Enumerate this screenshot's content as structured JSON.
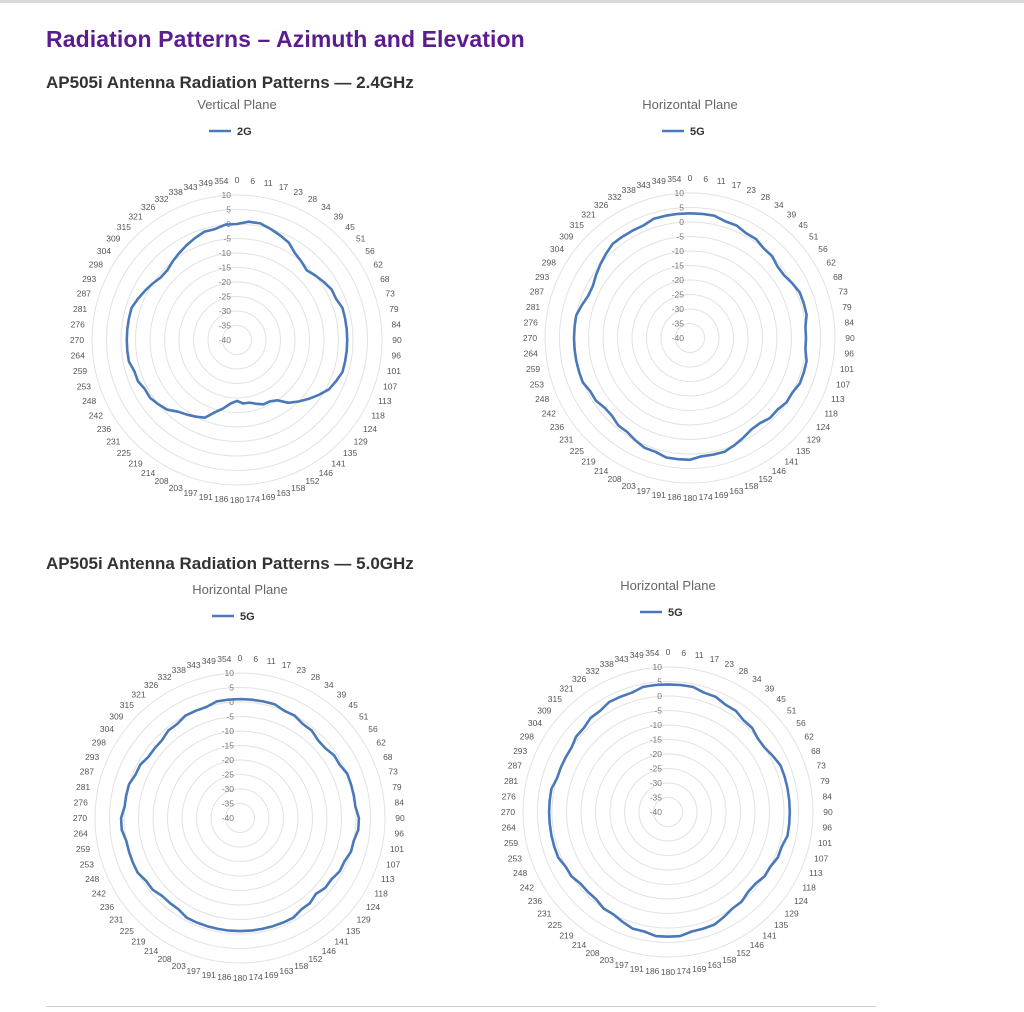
{
  "page": {
    "title": "Radiation Patterns – Azimuth and Elevation",
    "sections": [
      {
        "heading": "AP505i Antenna Radiation Patterns — 2.4GHz"
      },
      {
        "heading": "AP505i Antenna Radiation Patterns — 5.0GHz"
      }
    ]
  },
  "chart_data": [
    {
      "type": "radar",
      "title": "Vertical Plane",
      "legend": {
        "placement": "top",
        "entries": [
          "2G"
        ]
      },
      "angles": [
        "0",
        "6",
        "11",
        "17",
        "23",
        "28",
        "34",
        "39",
        "45",
        "51",
        "56",
        "62",
        "68",
        "73",
        "79",
        "84",
        "90",
        "96",
        "101",
        "107",
        "113",
        "118",
        "124",
        "129",
        "135",
        "141",
        "146",
        "152",
        "158",
        "163",
        "169",
        "174",
        "180",
        "186",
        "191",
        "197",
        "203",
        "208",
        "214",
        "219",
        "225",
        "231",
        "236",
        "242",
        "248",
        "253",
        "259",
        "264",
        "270",
        "276",
        "281",
        "287",
        "293",
        "298",
        "304",
        "309",
        "315",
        "321",
        "326",
        "332",
        "338",
        "343",
        "349",
        "354"
      ],
      "radial_ticks": [
        "10",
        "5",
        "0",
        "-5",
        "-10",
        "-15",
        "-20",
        "-25",
        "-30",
        "-35",
        "-40"
      ],
      "rlim": [
        -40,
        10
      ],
      "grid": true,
      "line_color": "#4a78b8",
      "series": [
        {
          "name": "2G",
          "values": [
            0,
            1,
            1,
            0,
            -1,
            -2,
            -4,
            -5,
            -6,
            -5,
            -4,
            -3,
            -3,
            -2,
            -2,
            -2,
            -2,
            -2,
            -2,
            -2,
            -3,
            -4,
            -6,
            -8,
            -10,
            -12,
            -15,
            -16,
            -16,
            -17,
            -18,
            -18,
            -19,
            -18,
            -16,
            -14,
            -11,
            -10,
            -9,
            -8,
            -6,
            -5,
            -4,
            -4,
            -3,
            -3,
            -2,
            -2,
            -2,
            -2,
            -2,
            -2,
            -3,
            -4,
            -5,
            -6,
            -6,
            -5,
            -4,
            -3,
            -2,
            -1,
            -1,
            0
          ]
        }
      ]
    },
    {
      "type": "radar",
      "title": "Horizontal Plane",
      "legend": {
        "placement": "top",
        "entries": [
          "5G"
        ]
      },
      "angles": [
        "0",
        "6",
        "11",
        "17",
        "23",
        "28",
        "34",
        "39",
        "45",
        "51",
        "56",
        "62",
        "68",
        "73",
        "79",
        "84",
        "90",
        "96",
        "101",
        "107",
        "113",
        "118",
        "124",
        "129",
        "135",
        "141",
        "146",
        "152",
        "158",
        "163",
        "169",
        "174",
        "180",
        "186",
        "191",
        "197",
        "203",
        "208",
        "214",
        "219",
        "225",
        "231",
        "236",
        "242",
        "248",
        "253",
        "259",
        "264",
        "270",
        "276",
        "281",
        "287",
        "293",
        "298",
        "304",
        "309",
        "315",
        "321",
        "326",
        "332",
        "338",
        "343",
        "349",
        "354"
      ],
      "radial_ticks": [
        "10",
        "5",
        "0",
        "-5",
        "-10",
        "-15",
        "-20",
        "-25",
        "-30",
        "-35",
        "-40"
      ],
      "rlim": [
        -40,
        10
      ],
      "grid": true,
      "line_color": "#4a78b8",
      "series": [
        {
          "name": "5G",
          "values": [
            3,
            3,
            3,
            2,
            2,
            1,
            1,
            0,
            0,
            -1,
            -1,
            0,
            1,
            1,
            1,
            0,
            0,
            0,
            1,
            1,
            1,
            0,
            0,
            -1,
            -1,
            -2,
            -2,
            -1,
            0,
            1,
            1,
            1,
            2,
            2,
            2,
            1,
            1,
            0,
            -1,
            -1,
            -2,
            -2,
            -1,
            -1,
            0,
            0,
            0,
            0,
            0,
            0,
            0,
            -1,
            -2,
            -2,
            -1,
            0,
            1,
            2,
            2,
            2,
            2,
            3,
            3,
            3
          ]
        }
      ]
    },
    {
      "type": "radar",
      "title": "Horizontal Plane",
      "legend": {
        "placement": "top",
        "entries": [
          "5G"
        ]
      },
      "angles": [
        "0",
        "6",
        "11",
        "17",
        "23",
        "28",
        "34",
        "39",
        "45",
        "51",
        "56",
        "62",
        "68",
        "73",
        "79",
        "84",
        "90",
        "96",
        "101",
        "107",
        "113",
        "118",
        "124",
        "129",
        "135",
        "141",
        "146",
        "152",
        "158",
        "163",
        "169",
        "174",
        "180",
        "186",
        "191",
        "197",
        "203",
        "208",
        "214",
        "219",
        "225",
        "231",
        "236",
        "242",
        "248",
        "253",
        "259",
        "264",
        "270",
        "276",
        "281",
        "287",
        "293",
        "298",
        "304",
        "309",
        "315",
        "321",
        "326",
        "332",
        "338",
        "343",
        "349",
        "354"
      ],
      "radial_ticks": [
        "10",
        "5",
        "0",
        "-5",
        "-10",
        "-15",
        "-20",
        "-25",
        "-30",
        "-35",
        "-40"
      ],
      "rlim": [
        -40,
        10
      ],
      "grid": true,
      "line_color": "#4a78b8",
      "series": [
        {
          "name": "5G",
          "values": [
            1,
            1,
            1,
            1,
            0,
            0,
            -1,
            -1,
            -2,
            -2,
            -1,
            -1,
            0,
            0,
            0,
            0,
            1,
            1,
            0,
            0,
            -1,
            -1,
            -2,
            -2,
            -3,
            -2,
            -2,
            -1,
            -1,
            -1,
            -1,
            -1,
            -1,
            -1,
            -1,
            -1,
            -1,
            -1,
            -2,
            -2,
            -2,
            -1,
            -1,
            0,
            0,
            0,
            0,
            1,
            1,
            0,
            0,
            0,
            -1,
            -1,
            -2,
            -2,
            -2,
            -1,
            -1,
            0,
            0,
            0,
            1,
            1
          ]
        }
      ]
    },
    {
      "type": "radar",
      "title": "Horizontal Plane",
      "legend": {
        "placement": "top",
        "entries": [
          "5G"
        ]
      },
      "angles": [
        "0",
        "6",
        "11",
        "17",
        "23",
        "28",
        "34",
        "39",
        "45",
        "51",
        "56",
        "62",
        "68",
        "73",
        "79",
        "84",
        "90",
        "96",
        "101",
        "107",
        "113",
        "118",
        "124",
        "129",
        "135",
        "141",
        "146",
        "152",
        "158",
        "163",
        "169",
        "174",
        "180",
        "186",
        "191",
        "197",
        "203",
        "208",
        "214",
        "219",
        "225",
        "231",
        "236",
        "242",
        "248",
        "253",
        "259",
        "264",
        "270",
        "276",
        "281",
        "287",
        "293",
        "298",
        "304",
        "309",
        "315",
        "321",
        "326",
        "332",
        "338",
        "343",
        "349",
        "354"
      ],
      "radial_ticks": [
        "10",
        "5",
        "0",
        "-5",
        "-10",
        "-15",
        "-20",
        "-25",
        "-30",
        "-35",
        "-40"
      ],
      "rlim": [
        -40,
        10
      ],
      "grid": true,
      "line_color": "#4a78b8",
      "series": [
        {
          "name": "5G",
          "values": [
            4,
            4,
            4,
            3,
            3,
            2,
            2,
            1,
            1,
            0,
            0,
            1,
            2,
            2,
            2,
            2,
            2,
            2,
            2,
            1,
            1,
            0,
            0,
            -1,
            -1,
            0,
            0,
            1,
            2,
            2,
            2,
            3,
            3,
            3,
            2,
            2,
            1,
            0,
            0,
            -1,
            -1,
            -1,
            0,
            0,
            1,
            1,
            1,
            1,
            1,
            1,
            1,
            0,
            0,
            0,
            0,
            1,
            1,
            2,
            2,
            3,
            3,
            3,
            4,
            4
          ]
        }
      ]
    }
  ]
}
